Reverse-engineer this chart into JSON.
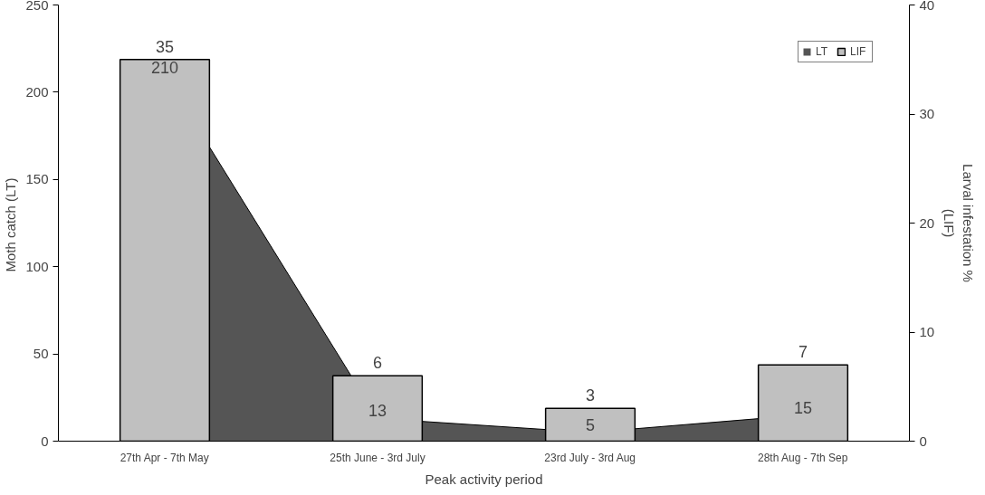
{
  "chart_data": {
    "type": "bar",
    "xlabel": "Peak activity period",
    "ylabel": "Moth catch  (LT)",
    "y2label": "Larval infestation %\n(LIF)",
    "categories": [
      "27th Apr - 7th May",
      "25th June - 3rd July",
      "23rd July - 3rd Aug",
      "28th Aug - 7th Sep"
    ],
    "series": [
      {
        "name": "LT",
        "type": "area",
        "color": "#555555",
        "values": [
          210,
          13,
          5,
          15
        ],
        "value_labels": [
          "210",
          "13",
          "5",
          "15"
        ]
      },
      {
        "name": "LIF",
        "axis": "y2",
        "color": "#c0c0c0",
        "values": [
          35,
          6,
          3,
          7
        ],
        "value_labels": [
          "35",
          "6",
          "3",
          "7"
        ]
      }
    ],
    "ylim": [
      0,
      250
    ],
    "yticks": [
      0,
      50,
      100,
      150,
      200,
      250
    ],
    "y2lim": [
      0,
      40
    ],
    "y2ticks": [
      0,
      10,
      20,
      30,
      40
    ],
    "legend": "top right",
    "grid": false
  }
}
